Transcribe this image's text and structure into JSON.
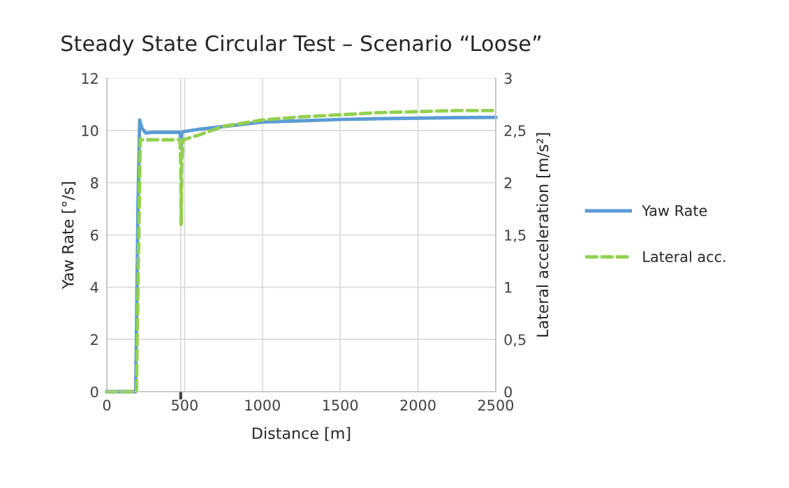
{
  "chart_data": {
    "type": "line",
    "title": "Steady State Circular Test – Scenario “Loose”",
    "xlabel": "Distance [m]",
    "ylabel": "Yaw Rate [°/s]",
    "y2label": "Lateral acceleration [m/s²]",
    "xlim": [
      0,
      2500
    ],
    "xticks": [
      0,
      {
        "value": 475,
        "label": null
      },
      500,
      1000,
      1500,
      2000,
      2500
    ],
    "ylim": [
      0,
      12
    ],
    "yticks": [
      0,
      2,
      4,
      6,
      8,
      10,
      12
    ],
    "y2lim": [
      0,
      3
    ],
    "y2ticks": [
      0,
      {
        "value": 0.5,
        "label": "0,5"
      },
      1,
      {
        "value": 1.5,
        "label": "1,5"
      },
      2,
      {
        "value": 2.5,
        "label": "2,5"
      },
      3
    ],
    "grid": true,
    "legend": "right",
    "series": [
      {
        "name": "Yaw Rate",
        "color": "#5b9bd5",
        "line_style": "solid",
        "x": [
          0,
          185,
          190,
          200,
          211,
          225,
          250,
          300,
          400,
          470,
          478,
          482,
          490,
          600,
          750,
          1000,
          1250,
          1500,
          1750,
          2000,
          2250,
          2500
        ],
        "values": [
          0,
          0,
          2,
          7,
          10.4,
          10.1,
          9.9,
          9.93,
          9.93,
          9.93,
          9.4,
          9.9,
          9.95,
          10.05,
          10.15,
          10.32,
          10.37,
          10.42,
          10.45,
          10.47,
          10.49,
          10.5
        ]
      },
      {
        "name": "Lateral acc.",
        "color": "#92d050",
        "line_style": "dashed",
        "axis": "y2",
        "x": [
          0,
          190,
          215,
          225,
          470,
          475,
          478,
          482,
          490,
          600,
          750,
          1000,
          1250,
          1500,
          1750,
          2000,
          2250,
          2500
        ],
        "values": [
          0,
          0,
          2.42,
          2.41,
          2.41,
          2.2,
          1.6,
          2.2,
          2.41,
          2.46,
          2.54,
          2.6,
          2.63,
          2.65,
          2.67,
          2.68,
          2.69,
          2.69
        ]
      }
    ]
  }
}
